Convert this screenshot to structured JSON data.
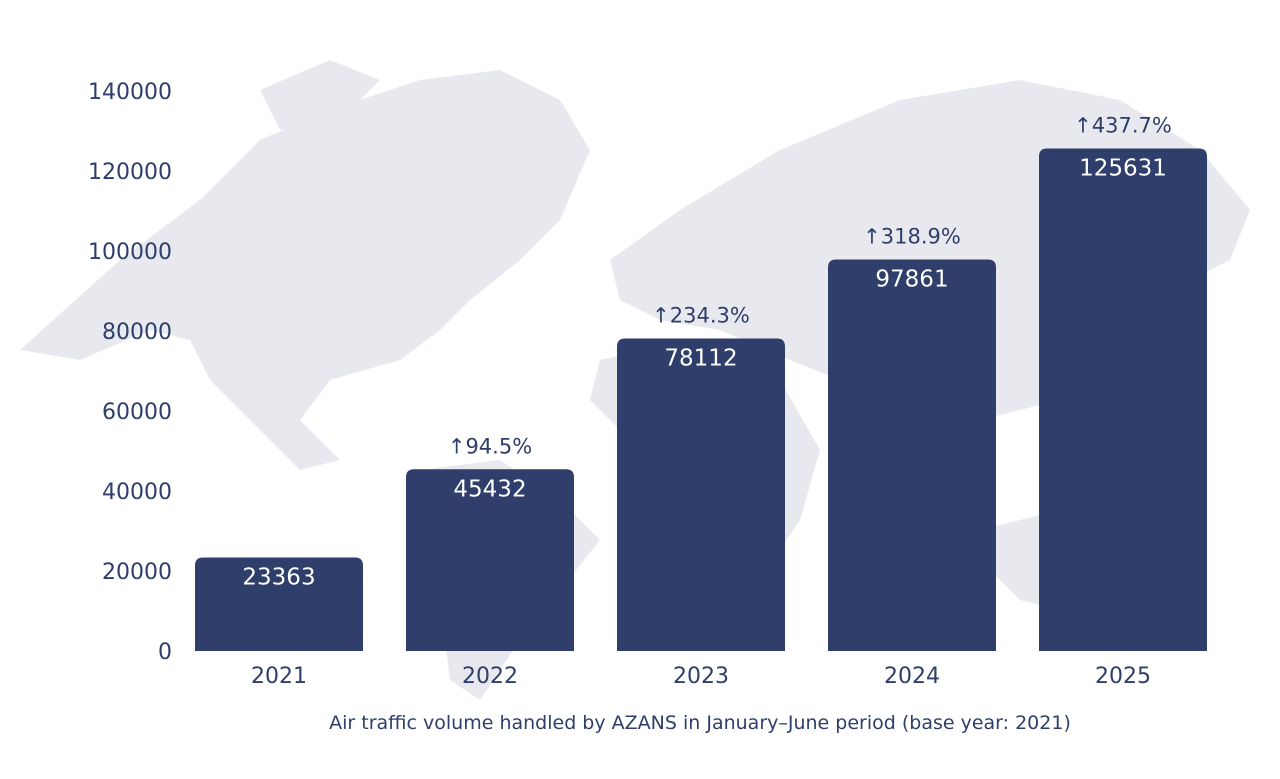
{
  "chart_data": {
    "type": "bar",
    "title": "",
    "caption": "Air traffic volume handled by AZANS in January–June period (base year: 2021)",
    "xlabel": "",
    "ylabel": "",
    "categories": [
      "2021",
      "2022",
      "2023",
      "2024",
      "2025"
    ],
    "values": [
      23363,
      45432,
      78112,
      97861,
      125631
    ],
    "value_labels": [
      "23363",
      "45432",
      "78112",
      "97861",
      "125631"
    ],
    "change_labels": [
      "",
      "↑94.5%",
      "↑234.3%",
      "↑318.9%",
      "↑437.7%"
    ],
    "ylim": [
      0,
      140000
    ],
    "yticks": [
      "0",
      "20000",
      "40000",
      "60000",
      "80000",
      "100000",
      "120000",
      "140000"
    ],
    "grid": false,
    "bar_color": "#2f3e6a",
    "background_map_color": "#e8e9ef"
  }
}
